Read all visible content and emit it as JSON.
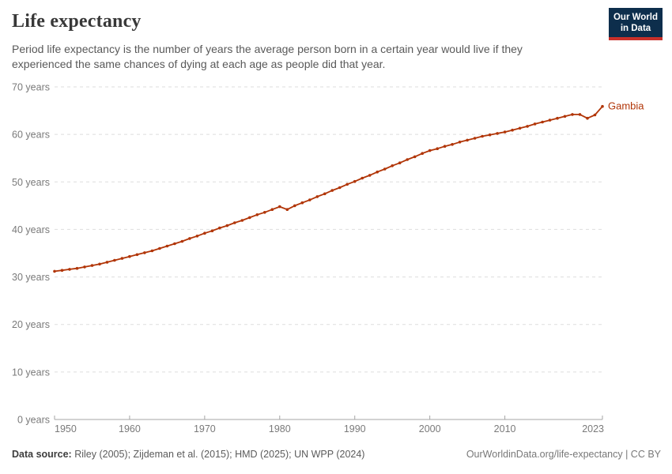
{
  "header": {
    "title": "Life expectancy",
    "subtitle_lines": [
      "Period life expectancy is the number of years the average person born in a certain year would live if they",
      "experienced the same chances of dying at each age as people did that year."
    ],
    "logo": {
      "line1": "Our World",
      "line2": "in Data"
    }
  },
  "footer": {
    "datasource_label": "Data source:",
    "datasource_text": " Riley (2005); Zijdeman et al. (2015); HMD (2025); UN WPP (2024)",
    "link_text": "OurWorldinData.org/life-expectancy | CC BY"
  },
  "colors": {
    "series": "#b13507",
    "gridline": "#dddddd",
    "axis": "#a5a5a5",
    "tick_label": "#7a7a7a",
    "logo_bg": "#0d2e4c",
    "logo_red": "#c9302a"
  },
  "chart_data": {
    "type": "line",
    "title": "Life expectancy",
    "xlabel": "",
    "ylabel": "",
    "xlim": [
      1950,
      2023
    ],
    "ylim": [
      0,
      70
    ],
    "grid": "horizontal dashed",
    "legend": "end-of-line entity label",
    "x_ticks": [
      1950,
      1960,
      1970,
      1980,
      1990,
      2000,
      2010,
      2023
    ],
    "x_tick_labels": [
      "1950",
      "1960",
      "1970",
      "1980",
      "1990",
      "2000",
      "2010",
      "2023"
    ],
    "y_ticks": [
      0,
      10,
      20,
      30,
      40,
      50,
      60,
      70
    ],
    "y_tick_labels": [
      "0 years",
      "10 years",
      "20 years",
      "30 years",
      "40 years",
      "50 years",
      "60 years",
      "70 years"
    ],
    "series": [
      {
        "name": "Gambia",
        "color": "#b13507",
        "marker": "circle",
        "years": [
          1950,
          1951,
          1952,
          1953,
          1954,
          1955,
          1956,
          1957,
          1958,
          1959,
          1960,
          1961,
          1962,
          1963,
          1964,
          1965,
          1966,
          1967,
          1968,
          1969,
          1970,
          1971,
          1972,
          1973,
          1974,
          1975,
          1976,
          1977,
          1978,
          1979,
          1980,
          1981,
          1982,
          1983,
          1984,
          1985,
          1986,
          1987,
          1988,
          1989,
          1990,
          1991,
          1992,
          1993,
          1994,
          1995,
          1996,
          1997,
          1998,
          1999,
          2000,
          2001,
          2002,
          2003,
          2004,
          2005,
          2006,
          2007,
          2008,
          2009,
          2010,
          2011,
          2012,
          2013,
          2014,
          2015,
          2016,
          2017,
          2018,
          2019,
          2020,
          2021,
          2022,
          2023
        ],
        "values": [
          31.2,
          31.4,
          31.6,
          31.8,
          32.1,
          32.4,
          32.7,
          33.1,
          33.5,
          33.9,
          34.3,
          34.7,
          35.1,
          35.5,
          36.0,
          36.5,
          37.0,
          37.5,
          38.1,
          38.6,
          39.2,
          39.7,
          40.3,
          40.8,
          41.4,
          41.9,
          42.5,
          43.1,
          43.6,
          44.2,
          44.8,
          44.2,
          45.0,
          45.6,
          46.2,
          46.9,
          47.5,
          48.2,
          48.8,
          49.5,
          50.1,
          50.8,
          51.4,
          52.1,
          52.7,
          53.4,
          54.0,
          54.7,
          55.3,
          56.0,
          56.6,
          57.0,
          57.5,
          57.9,
          58.4,
          58.8,
          59.2,
          59.6,
          59.9,
          60.2,
          60.5,
          60.9,
          61.3,
          61.7,
          62.2,
          62.6,
          63.0,
          63.4,
          63.8,
          64.2,
          64.2,
          63.4,
          64.1,
          65.9
        ]
      }
    ]
  }
}
